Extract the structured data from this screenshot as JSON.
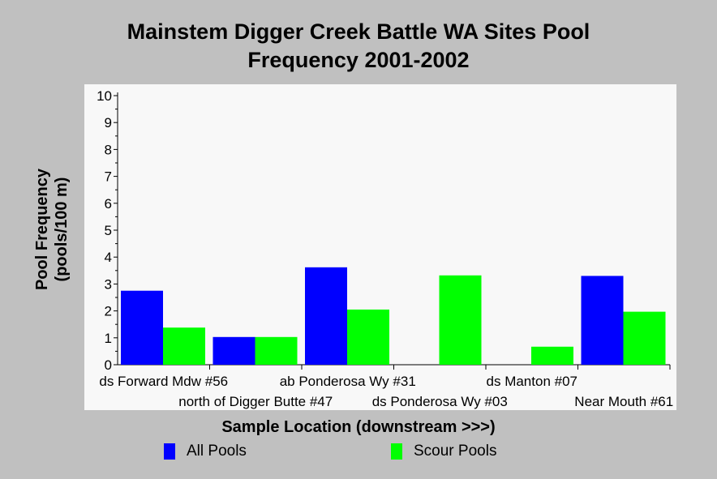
{
  "chart_data": {
    "type": "bar",
    "title_lines": [
      "Mainstem Digger Creek Battle WA Sites Pool",
      "Frequency 2001-2002"
    ],
    "ylabel_lines": [
      "Pool Frequency",
      "(pools/100 m)"
    ],
    "xlabel": "Sample Location (downstream >>>)",
    "ylim": [
      0,
      10
    ],
    "yticks": [
      "0",
      "1",
      "2",
      "3",
      "4",
      "5",
      "6",
      "7",
      "8",
      "9",
      "10"
    ],
    "categories": [
      "ds Forward Mdw #56",
      "north of Digger Butte #47",
      "ab Ponderosa Wy #31",
      "ds Ponderosa Wy #03",
      "ds Manton #07",
      "Near Mouth #61"
    ],
    "series": [
      {
        "name": "All Pools",
        "color": "#0000ff",
        "values": [
          2.75,
          1.03,
          3.62,
          0,
          0,
          3.3
        ]
      },
      {
        "name": "Scour Pools",
        "color": "#00ff00",
        "values": [
          1.38,
          1.03,
          2.05,
          3.32,
          0.67,
          1.97
        ]
      }
    ],
    "grid": false,
    "legend_position": "bottom"
  }
}
